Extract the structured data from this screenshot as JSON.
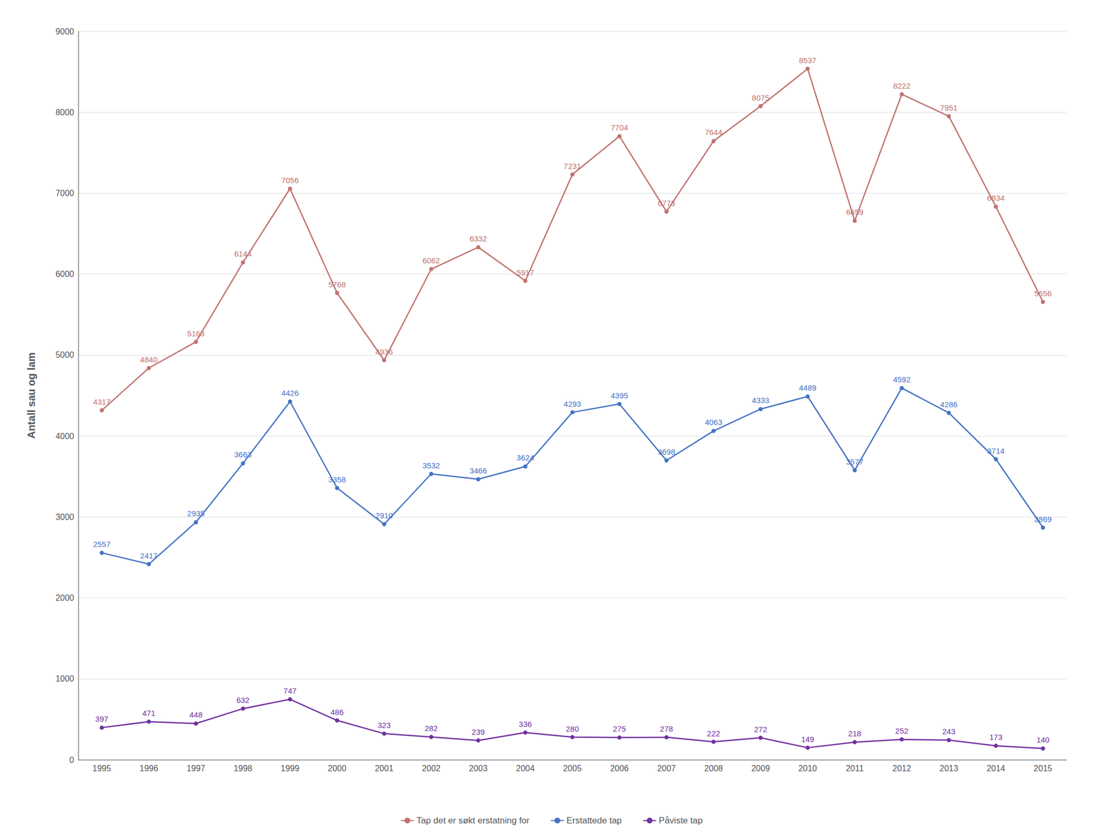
{
  "chart_data": {
    "type": "line",
    "categories": [
      "1995",
      "1996",
      "1997",
      "1998",
      "1999",
      "2000",
      "2001",
      "2002",
      "2003",
      "2004",
      "2005",
      "2006",
      "2007",
      "2008",
      "2009",
      "2010",
      "2011",
      "2012",
      "2013",
      "2014",
      "2015"
    ],
    "series": [
      {
        "name": "Tap det er søkt erstatning for",
        "color": "#c0726e",
        "values": [
          4317,
          4840,
          5163,
          6144,
          7056,
          5768,
          4936,
          6062,
          6332,
          5917,
          7231,
          7704,
          6773,
          7644,
          8075,
          8537,
          6659,
          8222,
          7951,
          6834,
          5656
        ]
      },
      {
        "name": "Erstattede tap",
        "color": "#4472c4",
        "values": [
          2557,
          2417,
          2935,
          3663,
          4426,
          3358,
          2910,
          3532,
          3466,
          3624,
          4293,
          4395,
          3698,
          4063,
          4333,
          4489,
          3577,
          4592,
          4286,
          3714,
          2869
        ]
      },
      {
        "name": "Påviste tap",
        "color": "#7030a0",
        "values": [
          397,
          471,
          448,
          632,
          747,
          486,
          323,
          282,
          239,
          336,
          280,
          275,
          278,
          222,
          272,
          149,
          218,
          252,
          243,
          173,
          140
        ]
      }
    ],
    "ylabel": "Antall sau og lam",
    "ylim": [
      0,
      9000
    ],
    "yticks": [
      0,
      1000,
      2000,
      3000,
      4000,
      5000,
      6000,
      7000,
      8000,
      9000
    ],
    "grid": true,
    "legend": "bottom",
    "data_labels": true,
    "marker": "circle"
  }
}
